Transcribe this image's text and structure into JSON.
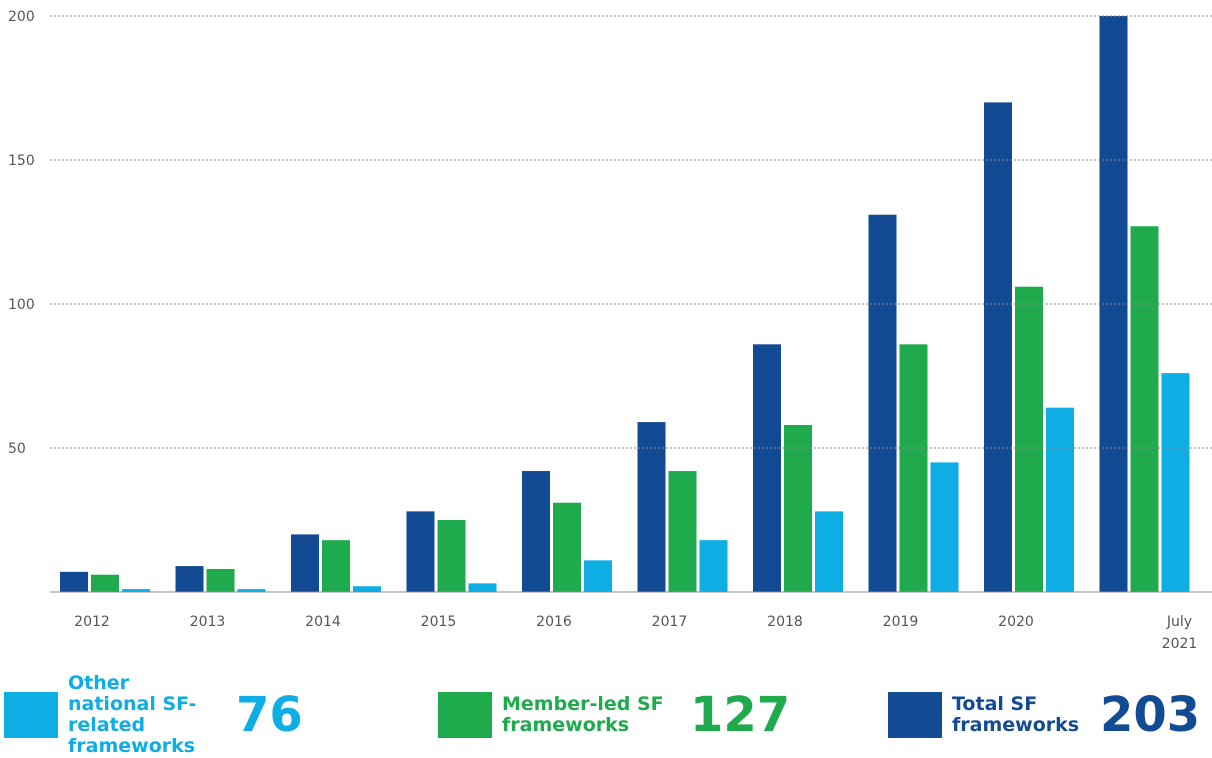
{
  "chart_data": {
    "type": "bar",
    "categories": [
      "2012",
      "2013",
      "2014",
      "2015",
      "2016",
      "2017",
      "2018",
      "2019",
      "2020",
      "July 2021"
    ],
    "series": [
      {
        "name": "Total SF frameworks",
        "color": "#134a94",
        "values": [
          7,
          9,
          20,
          28,
          42,
          59,
          86,
          131,
          170,
          203
        ]
      },
      {
        "name": "Member-led SF frameworks",
        "color": "#1fab4d",
        "values": [
          6,
          8,
          18,
          25,
          31,
          42,
          58,
          86,
          106,
          127
        ]
      },
      {
        "name": "Other national SF-related frameworks",
        "color": "#0eaee5",
        "values": [
          1,
          1,
          2,
          3,
          11,
          18,
          28,
          45,
          64,
          76
        ]
      }
    ],
    "ylim": [
      0,
      200
    ],
    "yticks": [
      50,
      100,
      150,
      200
    ],
    "grid": true
  }
}
